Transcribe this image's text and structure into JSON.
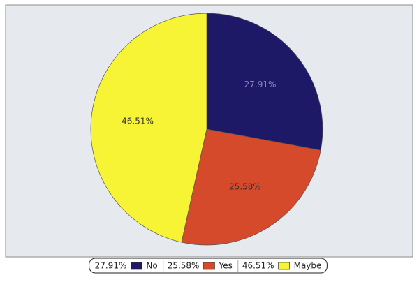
{
  "chart_data": {
    "type": "pie",
    "categories": [
      "No",
      "Yes",
      "Maybe"
    ],
    "values": [
      27.91,
      25.58,
      46.51
    ],
    "value_labels": [
      "27.91%",
      "25.58%",
      "46.51%"
    ],
    "colors": [
      "#1e1966",
      "#d44a2b",
      "#f7f436"
    ],
    "label_colors": [
      "#8a87b8",
      "#333333",
      "#333333"
    ],
    "start_angle": 90,
    "direction": "clockwise",
    "legend": "bottom"
  }
}
